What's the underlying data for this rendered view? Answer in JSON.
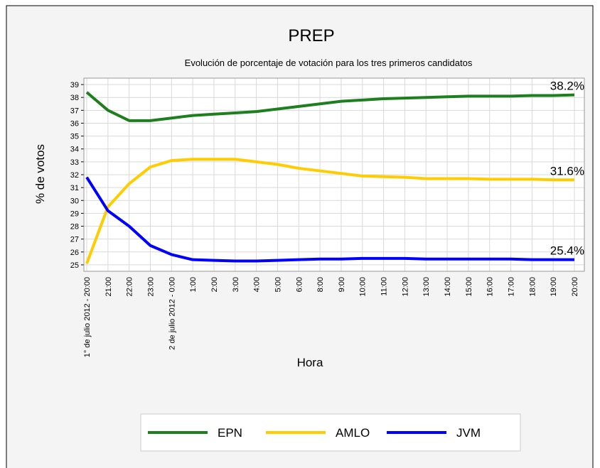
{
  "chart_data": {
    "type": "line",
    "title": "PREP",
    "subtitle": "Evolución de porcentaje de votación para los tres primeros candidatos",
    "y_label": "% de votos",
    "x_label": "Hora",
    "categories": [
      "1° de julio 2012 - 20:00",
      "21:00",
      "22:00",
      "23:00",
      "2 de julio 2012 - 0:00",
      "1:00",
      "2:00",
      "3:00",
      "4:00",
      "5:00",
      "6:00",
      "8:00",
      "9:00",
      "10:00",
      "11:00",
      "12:00",
      "13:00",
      "14:00",
      "15:00",
      "16:00",
      "17:00",
      "18:00",
      "19:00",
      "20:00"
    ],
    "series": [
      {
        "name": "EPN",
        "color": "#1e7f1e",
        "end_label": "38.2%",
        "values": [
          38.4,
          37.0,
          36.2,
          36.2,
          36.4,
          36.6,
          36.7,
          36.8,
          36.9,
          37.1,
          37.3,
          37.5,
          37.7,
          37.8,
          37.9,
          37.95,
          38.0,
          38.05,
          38.1,
          38.1,
          38.1,
          38.15,
          38.15,
          38.2
        ]
      },
      {
        "name": "AMLO",
        "color": "#ffcc00",
        "end_label": "31.6%",
        "values": [
          25.1,
          29.5,
          31.3,
          32.6,
          33.1,
          33.2,
          33.2,
          33.2,
          33.0,
          32.8,
          32.5,
          32.3,
          32.1,
          31.9,
          31.85,
          31.8,
          31.7,
          31.7,
          31.7,
          31.65,
          31.65,
          31.65,
          31.6,
          31.6
        ]
      },
      {
        "name": "JVM",
        "color": "#0000ff",
        "end_label": "25.4%",
        "values": [
          31.8,
          29.2,
          28.0,
          26.5,
          25.8,
          25.4,
          25.35,
          25.3,
          25.3,
          25.35,
          25.4,
          25.45,
          25.45,
          25.5,
          25.5,
          25.5,
          25.45,
          25.45,
          25.45,
          25.45,
          25.45,
          25.4,
          25.4,
          25.4
        ]
      }
    ],
    "ylim": [
      24.5,
      39.5
    ],
    "yticks": [
      25,
      26,
      27,
      28,
      29,
      30,
      31,
      32,
      33,
      34,
      35,
      36,
      37,
      38,
      39
    ],
    "grid": true,
    "legend": "bottom"
  }
}
